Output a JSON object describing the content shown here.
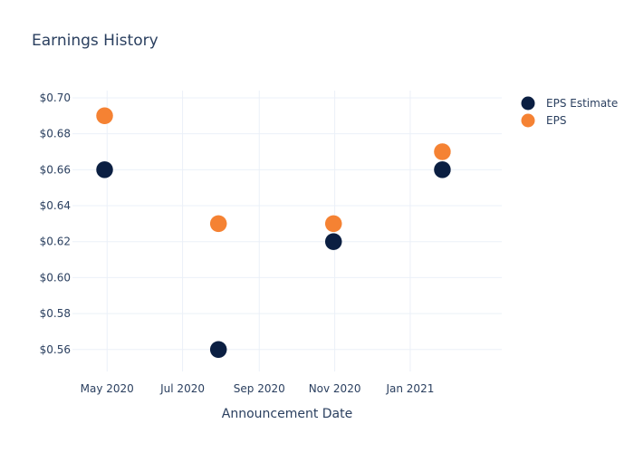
{
  "chart_data": {
    "type": "scatter",
    "title": "Earnings History",
    "xlabel": "Announcement Date",
    "ylabel": "",
    "x_ticks": [
      {
        "date": "2020-05-01",
        "label": "May 2020"
      },
      {
        "date": "2020-07-01",
        "label": "Jul 2020"
      },
      {
        "date": "2020-09-01",
        "label": "Sep 2020"
      },
      {
        "date": "2020-11-01",
        "label": "Nov 2020"
      },
      {
        "date": "2021-01-01",
        "label": "Jan 2021"
      }
    ],
    "y_ticks": [
      {
        "value": 0.56,
        "label": "$0.56"
      },
      {
        "value": 0.58,
        "label": "$0.58"
      },
      {
        "value": 0.6,
        "label": "$0.60"
      },
      {
        "value": 0.62,
        "label": "$0.62"
      },
      {
        "value": 0.64,
        "label": "$0.64"
      },
      {
        "value": 0.66,
        "label": "$0.66"
      },
      {
        "value": 0.68,
        "label": "$0.68"
      },
      {
        "value": 0.7,
        "label": "$0.70"
      }
    ],
    "xlim": [
      "2020-04-03",
      "2021-03-16"
    ],
    "ylim": [
      0.5478,
      0.704
    ],
    "grid": true,
    "legend_position": "top-right",
    "series": [
      {
        "name": "EPS Estimate",
        "color": "#0b1f42",
        "points": [
          {
            "x": "2020-04-29",
            "y": 0.66
          },
          {
            "x": "2020-07-30",
            "y": 0.56
          },
          {
            "x": "2020-10-31",
            "y": 0.62
          },
          {
            "x": "2021-01-27",
            "y": 0.66
          }
        ]
      },
      {
        "name": "EPS",
        "color": "#f58233",
        "points": [
          {
            "x": "2020-04-29",
            "y": 0.69
          },
          {
            "x": "2020-07-30",
            "y": 0.63
          },
          {
            "x": "2020-10-31",
            "y": 0.63
          },
          {
            "x": "2021-01-27",
            "y": 0.67
          }
        ]
      }
    ]
  }
}
